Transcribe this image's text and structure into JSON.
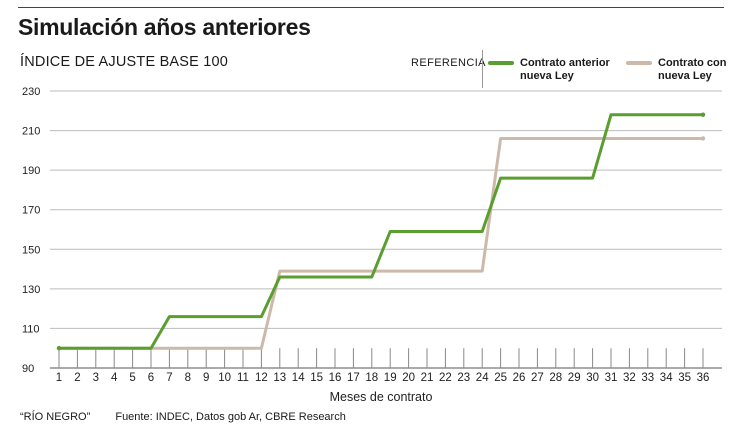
{
  "header": {
    "title": "Simulación años anteriores",
    "subtitle": "ÍNDICE DE AJUSTE BASE 100"
  },
  "legend": {
    "heading": "REFERENCIA",
    "items": [
      {
        "line1": "Contrato anterior",
        "line2": "nueva Ley",
        "color": "#5a9e2f"
      },
      {
        "line1": "Contrato con",
        "line2": "nueva Ley",
        "color": "#cdb9a9"
      }
    ]
  },
  "footer": {
    "credit": "“RÍO NEGRO”",
    "source": "Fuente: INDEC, Datos gob Ar, CBRE Research"
  },
  "chart_data": {
    "type": "line",
    "title": "Simulación años anteriores",
    "subtitle": "ÍNDICE DE AJUSTE BASE 100",
    "xlabel": "Meses de contrato",
    "ylabel": "",
    "x": [
      1,
      2,
      3,
      4,
      5,
      6,
      7,
      8,
      9,
      10,
      11,
      12,
      13,
      14,
      15,
      16,
      17,
      18,
      19,
      20,
      21,
      22,
      23,
      24,
      25,
      26,
      27,
      28,
      29,
      30,
      31,
      32,
      33,
      34,
      35,
      36
    ],
    "ylim": [
      90,
      230
    ],
    "yticks": [
      90,
      110,
      130,
      150,
      170,
      190,
      210,
      230
    ],
    "grid": "vertical lines at each month",
    "legend_position": "top-right",
    "series": [
      {
        "name": "Contrato anterior nueva Ley",
        "color": "#5a9e2f",
        "values": [
          100,
          100,
          100,
          100,
          100,
          100,
          116,
          116,
          116,
          116,
          116,
          116,
          136,
          136,
          136,
          136,
          136,
          136,
          159,
          159,
          159,
          159,
          159,
          159,
          186,
          186,
          186,
          186,
          186,
          186,
          218,
          218,
          218,
          218,
          218,
          218
        ]
      },
      {
        "name": "Contrato con nueva Ley",
        "color": "#cdb9a9",
        "values": [
          100,
          100,
          100,
          100,
          100,
          100,
          100,
          100,
          100,
          100,
          100,
          100,
          139,
          139,
          139,
          139,
          139,
          139,
          139,
          139,
          139,
          139,
          139,
          139,
          206,
          206,
          206,
          206,
          206,
          206,
          206,
          206,
          206,
          206,
          206,
          206
        ]
      }
    ]
  }
}
